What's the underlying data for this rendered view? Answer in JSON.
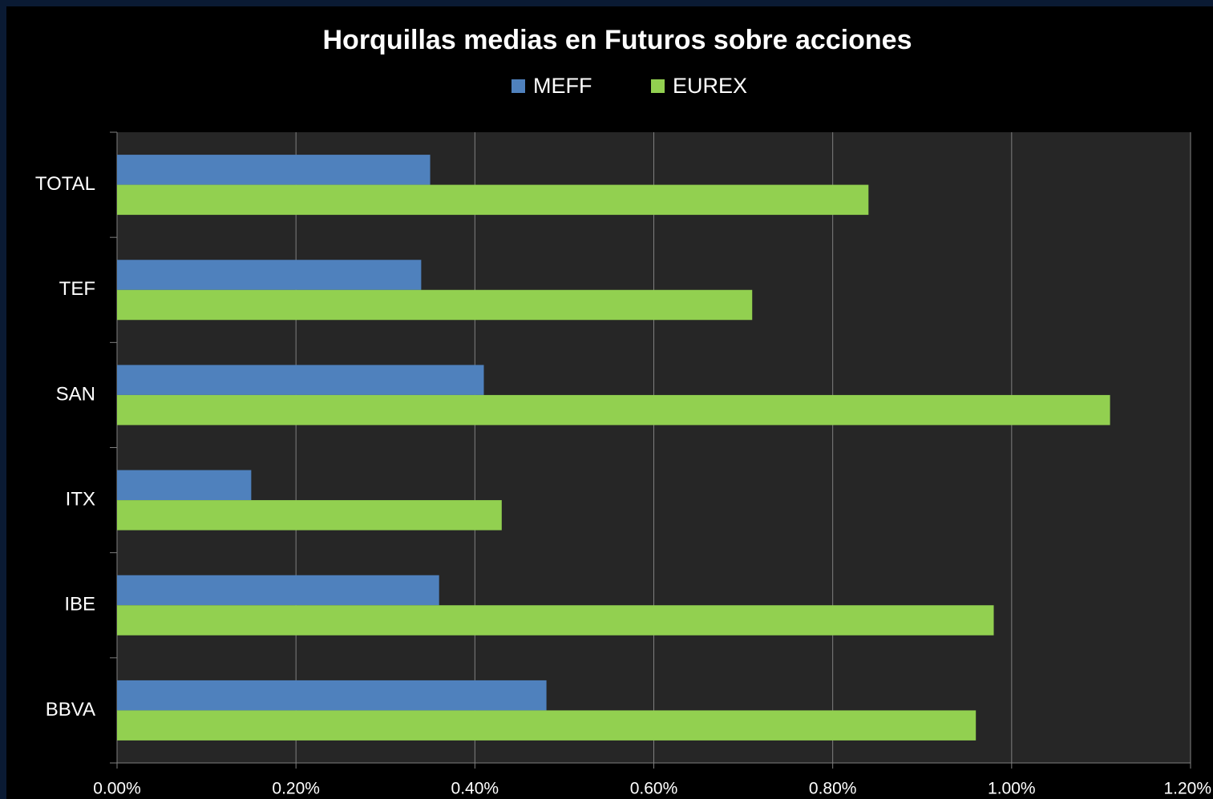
{
  "chart_data": {
    "type": "bar",
    "orientation": "horizontal",
    "title": "Horquillas medias en Futuros sobre acciones",
    "categories": [
      "TOTAL",
      "TEF",
      "SAN",
      "ITX",
      "IBE",
      "BBVA"
    ],
    "series": [
      {
        "name": "MEFF",
        "color": "#4f81bd",
        "values": [
          0.35,
          0.34,
          0.41,
          0.15,
          0.36,
          0.48
        ]
      },
      {
        "name": "EUREX",
        "color": "#92d050",
        "values": [
          0.84,
          0.71,
          1.11,
          0.43,
          0.98,
          0.96
        ]
      }
    ],
    "xlim": [
      0,
      1.2
    ],
    "xticks": [
      {
        "value": 0,
        "label": "0.00%"
      },
      {
        "value": 0.2,
        "label": "0.20%"
      },
      {
        "value": 0.4,
        "label": "0.40%"
      },
      {
        "value": 0.6,
        "label": "0.60%"
      },
      {
        "value": 0.8,
        "label": "0.80%"
      },
      {
        "value": 1.0,
        "label": "1.00%"
      },
      {
        "value": 1.2,
        "label": "1.20%"
      }
    ],
    "grid": true,
    "legend": "top"
  }
}
